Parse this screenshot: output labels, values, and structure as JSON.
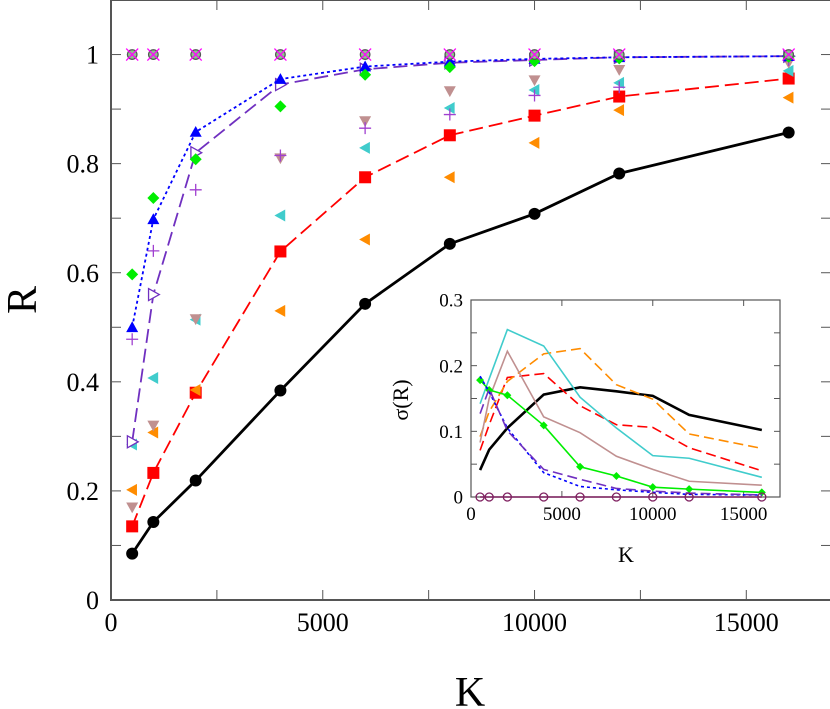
{
  "chart_data": [
    {
      "type": "line",
      "xlabel": "K",
      "ylabel": "R",
      "xlim": [
        0,
        17000
      ],
      "ylim": [
        0,
        1.1
      ],
      "xticks": [
        "0",
        "5000",
        "10000",
        "15000"
      ],
      "yticks": [
        "0",
        "0.2",
        "0.4",
        "0.6",
        "0.8",
        "1"
      ],
      "grid": false,
      "x": [
        500,
        1000,
        2000,
        4000,
        6000,
        8000,
        10000,
        12000,
        16000
      ],
      "series": [
        {
          "color": "#000000",
          "line": "solid",
          "marker": "circle",
          "values": [
            0.085,
            0.143,
            0.219,
            0.384,
            0.543,
            0.653,
            0.708,
            0.782,
            0.857
          ]
        },
        {
          "color": "#ff0000",
          "line": "dashed",
          "marker": "square",
          "values": [
            0.135,
            0.233,
            0.38,
            0.639,
            0.775,
            0.852,
            0.888,
            0.923,
            0.956
          ]
        },
        {
          "color": "#ff8c00",
          "line": "none",
          "marker": "triangle-left",
          "values": [
            0.202,
            0.307,
            0.385,
            0.53,
            0.661,
            0.775,
            0.838,
            0.898,
            0.921
          ]
        },
        {
          "color": "#40cccc",
          "line": "none",
          "marker": "triangle-left",
          "values": [
            0.285,
            0.407,
            0.514,
            0.705,
            0.829,
            0.902,
            0.935,
            0.948,
            0.97
          ]
        },
        {
          "color": "#c09090",
          "line": "none",
          "marker": "triangle-down",
          "values": [
            0.17,
            0.32,
            0.515,
            0.81,
            0.878,
            0.933,
            0.953,
            0.972,
            0.985
          ]
        },
        {
          "color": "#a040d0",
          "line": "none",
          "marker": "plus",
          "values": [
            0.478,
            0.64,
            0.752,
            0.815,
            0.865,
            0.89,
            0.925,
            0.94,
            0.99
          ]
        },
        {
          "color": "#7030c0",
          "line": "dashed",
          "marker": "triangle-right-open",
          "values": [
            0.29,
            0.56,
            0.82,
            0.945,
            0.973,
            0.985,
            0.99,
            0.995,
            0.997
          ]
        },
        {
          "color": "#0000ff",
          "line": "dotted",
          "marker": "triangle-up",
          "values": [
            0.5,
            0.698,
            0.858,
            0.955,
            0.978,
            0.987,
            0.992,
            0.995,
            0.997
          ]
        },
        {
          "color": "#00ee00",
          "line": "none",
          "marker": "diamond",
          "values": [
            0.597,
            0.737,
            0.808,
            0.905,
            0.963,
            0.977,
            0.988,
            0.993,
            0.996
          ]
        },
        {
          "color": "#ff00ff",
          "line": "none",
          "marker": "x-circle",
          "values": [
            1,
            1,
            1,
            1,
            1,
            1,
            1,
            1,
            1
          ]
        }
      ]
    },
    {
      "type": "line",
      "inset": true,
      "xlabel": "K",
      "ylabel": "σ(R)",
      "xlim": [
        0,
        17000
      ],
      "ylim": [
        0,
        0.3
      ],
      "xticks": [
        "0",
        "5000",
        "10000",
        "15000"
      ],
      "yticks": [
        "0",
        "0.1",
        "0.2",
        "0.3"
      ],
      "grid": false,
      "x": [
        500,
        1000,
        2000,
        4000,
        6000,
        8000,
        10000,
        12000,
        16000
      ],
      "series": [
        {
          "color": "#000000",
          "line": "solid",
          "marker": "none",
          "values": [
            0.041,
            0.072,
            0.105,
            0.156,
            0.167,
            0.161,
            0.154,
            0.125,
            0.102
          ]
        },
        {
          "color": "#ff0000",
          "line": "dashed",
          "marker": "none",
          "values": [
            0.071,
            0.11,
            0.182,
            0.188,
            0.139,
            0.11,
            0.106,
            0.075,
            0.04
          ]
        },
        {
          "color": "#ff8c00",
          "line": "dashed",
          "marker": "none",
          "values": [
            0.092,
            0.13,
            0.176,
            0.218,
            0.226,
            0.171,
            0.149,
            0.096,
            0.074
          ]
        },
        {
          "color": "#40cccc",
          "line": "solid",
          "marker": "none",
          "values": [
            0.142,
            0.18,
            0.255,
            0.23,
            0.152,
            0.105,
            0.063,
            0.059,
            0.03
          ]
        },
        {
          "color": "#c09090",
          "line": "solid",
          "marker": "none",
          "values": [
            0.083,
            0.15,
            0.222,
            0.122,
            0.098,
            0.062,
            0.042,
            0.024,
            0.018
          ]
        },
        {
          "color": "#00ee00",
          "line": "solid",
          "marker": "diamond",
          "values": [
            0.178,
            0.163,
            0.155,
            0.109,
            0.046,
            0.032,
            0.015,
            0.012,
            0.007
          ]
        },
        {
          "color": "#0000ff",
          "line": "dotted",
          "marker": "none",
          "values": [
            0.184,
            0.16,
            0.105,
            0.037,
            0.016,
            0.011,
            0.007,
            0.004,
            0.003
          ]
        },
        {
          "color": "#7030c0",
          "line": "dashed",
          "marker": "none",
          "values": [
            0.127,
            0.165,
            0.101,
            0.042,
            0.027,
            0.013,
            0.009,
            0.006,
            0.003
          ]
        },
        {
          "color": "#7f2060",
          "line": "solid",
          "marker": "circle-open",
          "values": [
            0,
            0,
            0,
            0,
            0,
            0,
            0,
            0,
            0
          ]
        }
      ]
    }
  ]
}
